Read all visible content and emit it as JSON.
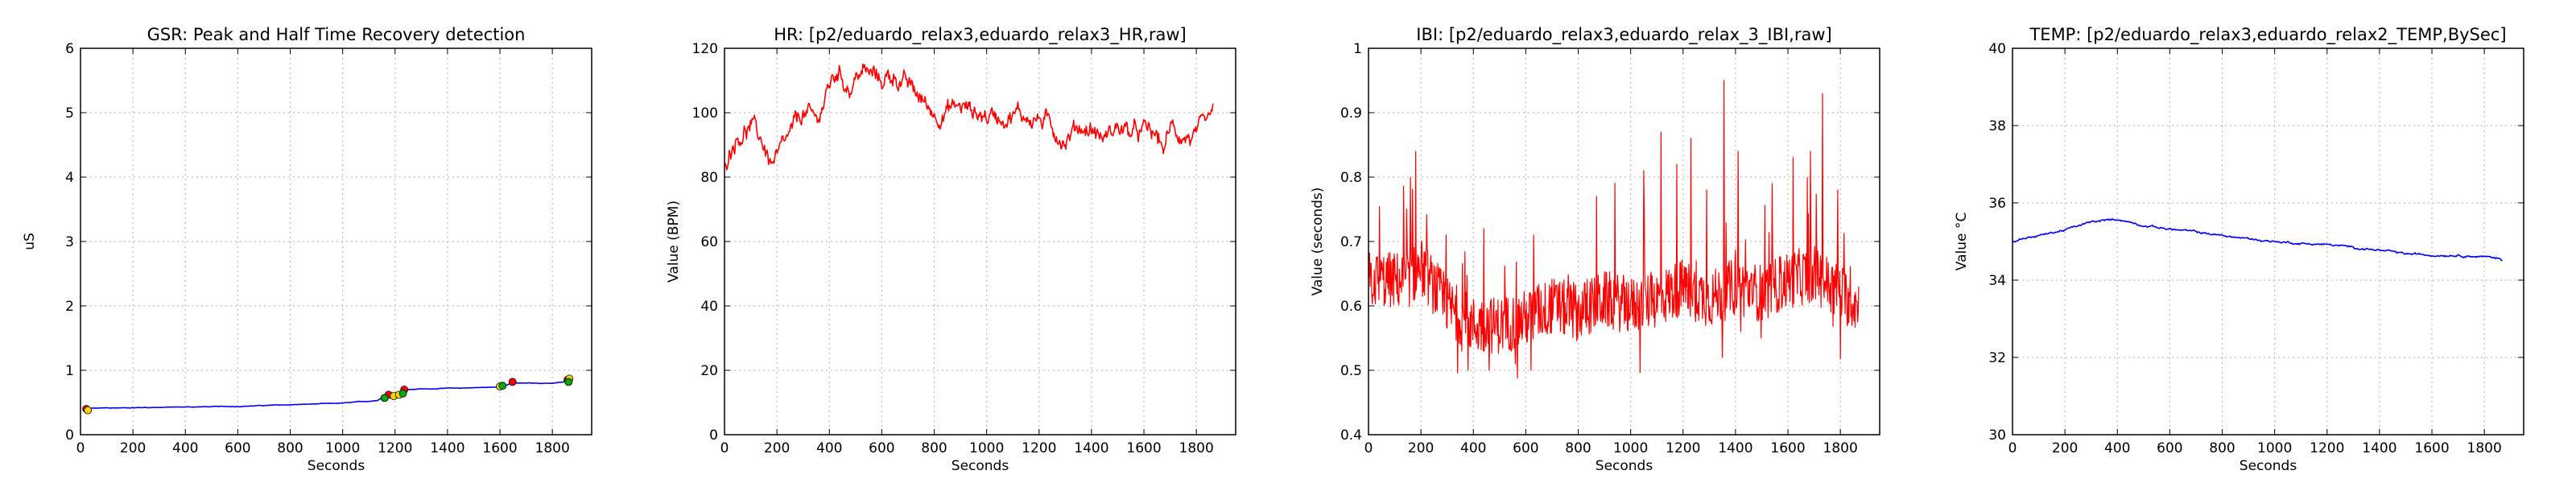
{
  "charts": [
    {
      "type": "line",
      "title": "GSR: Peak and Half Time Recovery detection",
      "xlabel": "Seconds",
      "ylabel": "uS",
      "xlim": [
        0,
        1950
      ],
      "ylim": [
        0,
        6
      ],
      "xticks": [
        0,
        200,
        400,
        600,
        800,
        1000,
        1200,
        1400,
        1600,
        1800
      ],
      "yticks": [
        0,
        1,
        2,
        3,
        4,
        5,
        6
      ],
      "grid": true,
      "line_color": "#0000ff",
      "series": [
        {
          "kind": "anchors",
          "noise": 0.005,
          "anchors": [
            [
              20,
              0.38
            ],
            [
              30,
              0.41
            ],
            [
              200,
              0.42
            ],
            [
              600,
              0.44
            ],
            [
              1000,
              0.49
            ],
            [
              1130,
              0.53
            ],
            [
              1150,
              0.58
            ],
            [
              1180,
              0.6
            ],
            [
              1200,
              0.62
            ],
            [
              1220,
              0.66
            ],
            [
              1240,
              0.7
            ],
            [
              1300,
              0.71
            ],
            [
              1500,
              0.73
            ],
            [
              1600,
              0.74
            ],
            [
              1640,
              0.79
            ],
            [
              1650,
              0.8
            ],
            [
              1700,
              0.8
            ],
            [
              1800,
              0.8
            ],
            [
              1850,
              0.82
            ],
            [
              1870,
              0.88
            ]
          ]
        }
      ],
      "markers": [
        {
          "color": "#ff0000",
          "points": [
            [
              22,
              0.4
            ],
            [
              1175,
              0.62
            ],
            [
              1235,
              0.7
            ],
            [
              1648,
              0.82
            ],
            [
              1858,
              0.85
            ]
          ]
        },
        {
          "color": "#ffd700",
          "points": [
            [
              28,
              0.38
            ],
            [
              1195,
              0.6
            ],
            [
              1215,
              0.62
            ],
            [
              1600,
              0.75
            ],
            [
              1865,
              0.87
            ]
          ]
        },
        {
          "color": "#00aa00",
          "points": [
            [
              1160,
              0.57
            ],
            [
              1230,
              0.64
            ],
            [
              1610,
              0.76
            ],
            [
              1862,
              0.82
            ]
          ]
        }
      ]
    },
    {
      "type": "line",
      "title": "HR: [p2/eduardo_relax3,eduardo_relax3_HR,raw]",
      "xlabel": "Seconds",
      "ylabel": "Value (BPM)",
      "xlim": [
        0,
        1950
      ],
      "ylim": [
        0,
        120
      ],
      "xticks": [
        0,
        200,
        400,
        600,
        800,
        1000,
        1200,
        1400,
        1600,
        1800
      ],
      "yticks": [
        0,
        20,
        40,
        60,
        80,
        100,
        120
      ],
      "grid": true,
      "line_color": "#ff0000",
      "series": [
        {
          "kind": "anchors",
          "noise": 3.5,
          "anchors": [
            [
              0,
              86
            ],
            [
              40,
              93
            ],
            [
              100,
              96
            ],
            [
              150,
              90
            ],
            [
              180,
              84
            ],
            [
              210,
              86
            ],
            [
              250,
              92
            ],
            [
              300,
              100
            ],
            [
              350,
              97
            ],
            [
              400,
              108
            ],
            [
              430,
              113
            ],
            [
              480,
              108
            ],
            [
              520,
              113
            ],
            [
              600,
              110
            ],
            [
              650,
              112
            ],
            [
              700,
              108
            ],
            [
              750,
              104
            ],
            [
              800,
              100
            ],
            [
              900,
              102
            ],
            [
              1000,
              99
            ],
            [
              1100,
              100
            ],
            [
              1200,
              98
            ],
            [
              1260,
              95
            ],
            [
              1300,
              92
            ],
            [
              1350,
              96
            ],
            [
              1400,
              95
            ],
            [
              1450,
              92
            ],
            [
              1500,
              96
            ],
            [
              1560,
              93
            ],
            [
              1620,
              94
            ],
            [
              1680,
              89
            ],
            [
              1700,
              95
            ],
            [
              1760,
              93
            ],
            [
              1800,
              92
            ],
            [
              1850,
              95
            ],
            [
              1865,
              101
            ]
          ]
        }
      ]
    },
    {
      "type": "line",
      "title": "IBI: [p2/eduardo_relax3,eduardo_relax_3_IBI,raw]",
      "xlabel": "Seconds",
      "ylabel": "Value (seconds)",
      "xlim": [
        0,
        1950
      ],
      "ylim": [
        0.4,
        1.0
      ],
      "xticks": [
        0,
        200,
        400,
        600,
        800,
        1000,
        1200,
        1400,
        1600,
        1800
      ],
      "yticks": [
        0.4,
        0.5,
        0.6,
        0.7,
        0.8,
        0.9,
        1.0
      ],
      "grid": true,
      "line_color": "#ff0000",
      "series": [
        {
          "kind": "spiky",
          "noise": 0.045,
          "anchors": [
            [
              0,
              0.64
            ],
            [
              150,
              0.64
            ],
            [
              200,
              0.66
            ],
            [
              300,
              0.6
            ],
            [
              400,
              0.57
            ],
            [
              500,
              0.57
            ],
            [
              600,
              0.58
            ],
            [
              700,
              0.6
            ],
            [
              800,
              0.59
            ],
            [
              900,
              0.61
            ],
            [
              1000,
              0.6
            ],
            [
              1100,
              0.61
            ],
            [
              1200,
              0.63
            ],
            [
              1300,
              0.61
            ],
            [
              1400,
              0.63
            ],
            [
              1500,
              0.62
            ],
            [
              1600,
              0.64
            ],
            [
              1700,
              0.65
            ],
            [
              1800,
              0.62
            ],
            [
              1870,
              0.6
            ]
          ],
          "peaks": [
            [
              180,
              0.84
            ],
            [
              160,
              0.8
            ],
            [
              1050,
              0.81
            ],
            [
              1115,
              0.87
            ],
            [
              1175,
              0.82
            ],
            [
              1230,
              0.86
            ],
            [
              1290,
              0.78
            ],
            [
              1355,
              0.95
            ],
            [
              1410,
              0.84
            ],
            [
              1540,
              0.79
            ],
            [
              1620,
              0.83
            ],
            [
              1685,
              0.84
            ],
            [
              1732,
              0.93
            ],
            [
              1790,
              0.78
            ],
            [
              870,
              0.77
            ],
            [
              630,
              0.71
            ],
            [
              440,
              0.72
            ]
          ],
          "dips": [
            [
              380,
              0.5
            ],
            [
              460,
              0.5
            ],
            [
              620,
              0.5
            ],
            [
              560,
              0.51
            ],
            [
              1350,
              0.52
            ],
            [
              1875,
              0.52
            ]
          ]
        }
      ]
    },
    {
      "type": "line",
      "title": "TEMP: [p2/eduardo_relax3,eduardo_relax2_TEMP,BySec]",
      "xlabel": "Seconds",
      "ylabel": "Value °C",
      "xlim": [
        0,
        1950
      ],
      "ylim": [
        30,
        40
      ],
      "xticks": [
        0,
        200,
        400,
        600,
        800,
        1000,
        1200,
        1400,
        1600,
        1800
      ],
      "yticks": [
        30,
        32,
        34,
        36,
        38,
        40
      ],
      "grid": true,
      "line_color": "#0000ff",
      "series": [
        {
          "kind": "anchors",
          "noise": 0.03,
          "anchors": [
            [
              0,
              35.0
            ],
            [
              50,
              35.1
            ],
            [
              100,
              35.15
            ],
            [
              200,
              35.3
            ],
            [
              300,
              35.5
            ],
            [
              400,
              35.58
            ],
            [
              500,
              35.42
            ],
            [
              600,
              35.32
            ],
            [
              700,
              35.25
            ],
            [
              800,
              35.15
            ],
            [
              900,
              35.07
            ],
            [
              1000,
              35.0
            ],
            [
              1100,
              34.95
            ],
            [
              1200,
              34.92
            ],
            [
              1300,
              34.85
            ],
            [
              1400,
              34.77
            ],
            [
              1500,
              34.68
            ],
            [
              1600,
              34.65
            ],
            [
              1700,
              34.65
            ],
            [
              1800,
              34.6
            ],
            [
              1850,
              34.58
            ],
            [
              1870,
              34.5
            ]
          ]
        }
      ]
    }
  ]
}
